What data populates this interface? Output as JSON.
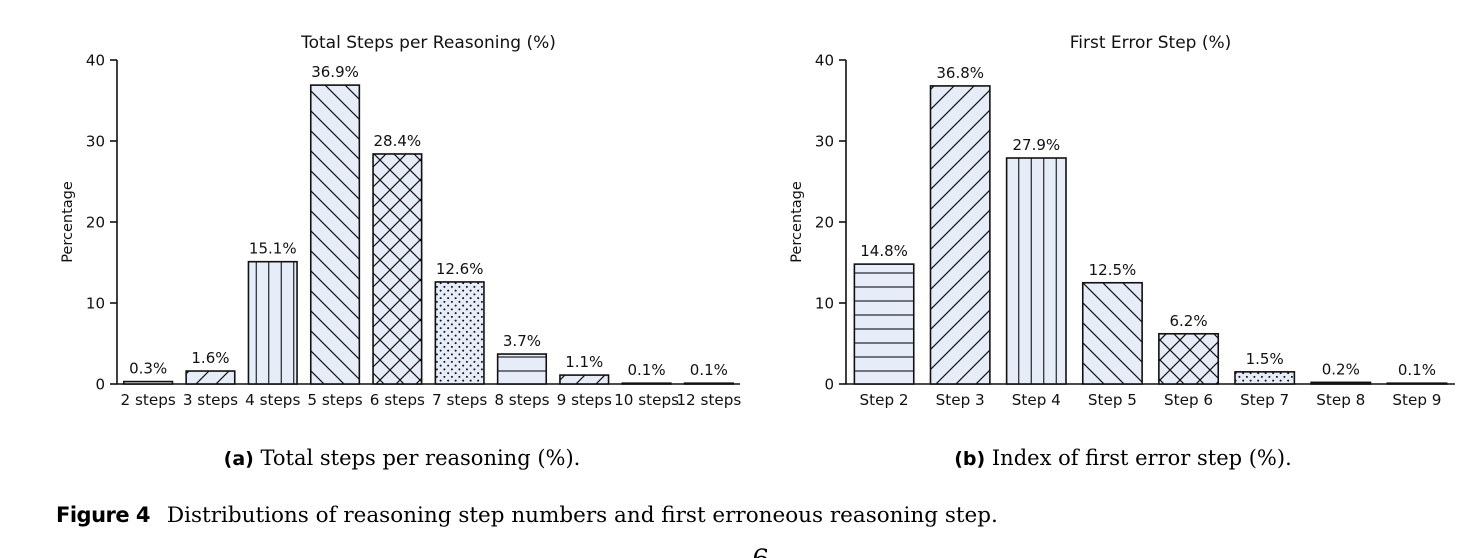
{
  "figure": {
    "caption_label": "Figure 4",
    "caption_text": "Distributions of reasoning step numbers and first erroneous reasoning step.",
    "page_number_fragment": "6"
  },
  "subcaptions": {
    "a_label": "(a)",
    "a_text": "Total steps per reasoning (%).",
    "b_label": "(b)",
    "b_text": "Index of first error step (%)."
  },
  "colors": {
    "bar_fill": "#E6EDF8",
    "bar_edge": "#111111",
    "hatch": "#111111",
    "text": "#111111",
    "background": "#ffffff"
  },
  "chart_data": [
    {
      "type": "bar",
      "title": "Total Steps per Reasoning (%)",
      "ylabel": "Percentage",
      "ylim": [
        0,
        40
      ],
      "yticks": [
        0,
        10,
        20,
        30,
        40
      ],
      "grid": false,
      "legend": "none",
      "categories": [
        "2 steps",
        "3 steps",
        "4 steps",
        "5 steps",
        "6 steps",
        "7 steps",
        "8 steps",
        "9 steps",
        "10 steps",
        "12 steps"
      ],
      "values": [
        0.3,
        1.6,
        15.1,
        36.9,
        28.4,
        12.6,
        3.7,
        1.1,
        0.1,
        0.1
      ],
      "bar_labels": [
        "0.3%",
        "1.6%",
        "15.1%",
        "36.9%",
        "28.4%",
        "12.6%",
        "3.7%",
        "1.1%",
        "0.1%",
        "0.1%"
      ],
      "hatches": [
        "-",
        "/",
        "|",
        "\\",
        "x",
        ".",
        "-",
        "/",
        "|",
        "\\"
      ]
    },
    {
      "type": "bar",
      "title": "First Error Step (%)",
      "ylabel": "Percentage",
      "ylim": [
        0,
        40
      ],
      "yticks": [
        0,
        10,
        20,
        30,
        40
      ],
      "grid": false,
      "legend": "none",
      "categories": [
        "Step 2",
        "Step 3",
        "Step 4",
        "Step 5",
        "Step 6",
        "Step 7",
        "Step 8",
        "Step 9"
      ],
      "values": [
        14.8,
        36.8,
        27.9,
        12.5,
        6.2,
        1.5,
        0.2,
        0.1
      ],
      "bar_labels": [
        "14.8%",
        "36.8%",
        "27.9%",
        "12.5%",
        "6.2%",
        "1.5%",
        "0.2%",
        "0.1%"
      ],
      "hatches": [
        "-",
        "/",
        "|",
        "\\",
        "x",
        ".",
        "-",
        "/"
      ]
    }
  ]
}
